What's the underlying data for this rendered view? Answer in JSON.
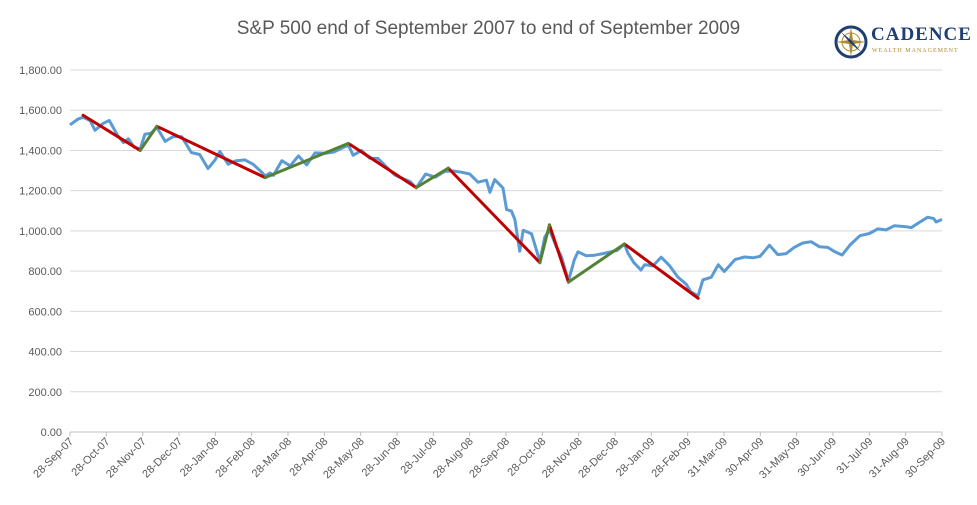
{
  "chart_data": {
    "type": "line",
    "title": "S&P 500 end of September 2007 to end of September 2009",
    "ylim": [
      0,
      1800
    ],
    "y_ticks": [
      "0.00",
      "200.00",
      "400.00",
      "600.00",
      "800.00",
      "1,000.00",
      "1,200.00",
      "1,400.00",
      "1,600.00",
      "1,800.00"
    ],
    "x_tick_labels": [
      "28-Sep-07",
      "28-Oct-07",
      "28-Nov-07",
      "28-Dec-07",
      "28-Jan-08",
      "28-Feb-08",
      "28-Mar-08",
      "28-Apr-08",
      "28-May-08",
      "28-Jun-08",
      "28-Jul-08",
      "28-Aug-08",
      "28-Sep-08",
      "28-Oct-08",
      "28-Nov-08",
      "28-Dec-08",
      "28-Jan-09",
      "28-Feb-09",
      "31-Mar-09",
      "30-Apr-09",
      "31-May-09",
      "30-Jun-09",
      "31-Jul-09",
      "31-Aug-09",
      "30-Sep-09"
    ],
    "grid": true,
    "series": [
      {
        "color": "#5b9bd5",
        "points": [
          [
            "2007-09-28",
            1527
          ],
          [
            "2007-10-05",
            1557
          ],
          [
            "2007-10-09",
            1565
          ],
          [
            "2007-10-15",
            1548
          ],
          [
            "2007-10-19",
            1500
          ],
          [
            "2007-10-26",
            1535
          ],
          [
            "2007-10-31",
            1549
          ],
          [
            "2007-11-07",
            1475
          ],
          [
            "2007-11-12",
            1439
          ],
          [
            "2007-11-16",
            1458
          ],
          [
            "2007-11-21",
            1416
          ],
          [
            "2007-11-26",
            1407
          ],
          [
            "2007-11-30",
            1481
          ],
          [
            "2007-12-05",
            1485
          ],
          [
            "2007-12-10",
            1515
          ],
          [
            "2007-12-17",
            1445
          ],
          [
            "2007-12-24",
            1470
          ],
          [
            "2007-12-31",
            1468
          ],
          [
            "2008-01-08",
            1390
          ],
          [
            "2008-01-15",
            1380
          ],
          [
            "2008-01-22",
            1310
          ],
          [
            "2008-01-28",
            1353
          ],
          [
            "2008-02-01",
            1395
          ],
          [
            "2008-02-08",
            1331
          ],
          [
            "2008-02-14",
            1348
          ],
          [
            "2008-02-22",
            1353
          ],
          [
            "2008-02-29",
            1331
          ],
          [
            "2008-03-07",
            1293
          ],
          [
            "2008-03-10",
            1273
          ],
          [
            "2008-03-14",
            1288
          ],
          [
            "2008-03-17",
            1276
          ],
          [
            "2008-03-24",
            1349
          ],
          [
            "2008-03-31",
            1323
          ],
          [
            "2008-04-07",
            1373
          ],
          [
            "2008-04-14",
            1328
          ],
          [
            "2008-04-21",
            1388
          ],
          [
            "2008-04-30",
            1386
          ],
          [
            "2008-05-07",
            1393
          ],
          [
            "2008-05-19",
            1427
          ],
          [
            "2008-05-23",
            1376
          ],
          [
            "2008-05-30",
            1400
          ],
          [
            "2008-06-06",
            1361
          ],
          [
            "2008-06-13",
            1360
          ],
          [
            "2008-06-20",
            1318
          ],
          [
            "2008-06-27",
            1278
          ],
          [
            "2008-07-03",
            1262
          ],
          [
            "2008-07-10",
            1245
          ],
          [
            "2008-07-15",
            1214
          ],
          [
            "2008-07-23",
            1283
          ],
          [
            "2008-07-31",
            1267
          ],
          [
            "2008-08-08",
            1296
          ],
          [
            "2008-08-15",
            1298
          ],
          [
            "2008-08-22",
            1292
          ],
          [
            "2008-08-29",
            1283
          ],
          [
            "2008-09-05",
            1242
          ],
          [
            "2008-09-12",
            1252
          ],
          [
            "2008-09-15",
            1192
          ],
          [
            "2008-09-19",
            1255
          ],
          [
            "2008-09-26",
            1213
          ],
          [
            "2008-09-29",
            1106
          ],
          [
            "2008-10-03",
            1099
          ],
          [
            "2008-10-06",
            1056
          ],
          [
            "2008-10-10",
            899
          ],
          [
            "2008-10-13",
            1003
          ],
          [
            "2008-10-20",
            985
          ],
          [
            "2008-10-27",
            848
          ],
          [
            "2008-10-31",
            968
          ],
          [
            "2008-11-04",
            1005
          ],
          [
            "2008-11-10",
            919
          ],
          [
            "2008-11-14",
            873
          ],
          [
            "2008-11-20",
            752
          ],
          [
            "2008-11-25",
            857
          ],
          [
            "2008-11-28",
            896
          ],
          [
            "2008-12-05",
            876
          ],
          [
            "2008-12-12",
            879
          ],
          [
            "2008-12-19",
            887
          ],
          [
            "2008-12-31",
            903
          ],
          [
            "2009-01-06",
            935
          ],
          [
            "2009-01-09",
            890
          ],
          [
            "2009-01-14",
            842
          ],
          [
            "2009-01-20",
            805
          ],
          [
            "2009-01-23",
            832
          ],
          [
            "2009-01-30",
            826
          ],
          [
            "2009-02-06",
            869
          ],
          [
            "2009-02-13",
            827
          ],
          [
            "2009-02-20",
            770
          ],
          [
            "2009-02-27",
            735
          ],
          [
            "2009-03-03",
            696
          ],
          [
            "2009-03-09",
            677
          ],
          [
            "2009-03-13",
            757
          ],
          [
            "2009-03-20",
            769
          ],
          [
            "2009-03-26",
            832
          ],
          [
            "2009-03-31",
            798
          ],
          [
            "2009-04-09",
            857
          ],
          [
            "2009-04-17",
            870
          ],
          [
            "2009-04-24",
            866
          ],
          [
            "2009-04-30",
            873
          ],
          [
            "2009-05-08",
            929
          ],
          [
            "2009-05-15",
            882
          ],
          [
            "2009-05-22",
            887
          ],
          [
            "2009-05-29",
            919
          ],
          [
            "2009-06-05",
            940
          ],
          [
            "2009-06-12",
            946
          ],
          [
            "2009-06-19",
            921
          ],
          [
            "2009-06-26",
            918
          ],
          [
            "2009-07-02",
            896
          ],
          [
            "2009-07-08",
            880
          ],
          [
            "2009-07-15",
            932
          ],
          [
            "2009-07-23",
            976
          ],
          [
            "2009-07-31",
            987
          ],
          [
            "2009-08-07",
            1010
          ],
          [
            "2009-08-14",
            1005
          ],
          [
            "2009-08-21",
            1026
          ],
          [
            "2009-08-31",
            1021
          ],
          [
            "2009-09-04",
            1016
          ],
          [
            "2009-09-11",
            1042
          ],
          [
            "2009-09-18",
            1068
          ],
          [
            "2009-09-23",
            1061
          ],
          [
            "2009-09-25",
            1044
          ],
          [
            "2009-09-30",
            1057
          ]
        ]
      },
      {
        "color": "#c00000",
        "segments": [
          [
            [
              "2007-10-09",
              1575
            ],
            [
              "2007-11-26",
              1400
            ]
          ],
          [
            [
              "2007-12-10",
              1520
            ],
            [
              "2008-03-10",
              1265
            ]
          ],
          [
            [
              "2008-05-19",
              1435
            ],
            [
              "2008-07-15",
              1215
            ]
          ],
          [
            [
              "2008-08-11",
              1312
            ],
            [
              "2008-10-27",
              842
            ]
          ],
          [
            [
              "2008-11-04",
              1030
            ],
            [
              "2008-11-20",
              745
            ]
          ],
          [
            [
              "2009-01-06",
              935
            ],
            [
              "2009-03-09",
              665
            ]
          ]
        ]
      },
      {
        "color": "#548235",
        "segments": [
          [
            [
              "2007-11-26",
              1400
            ],
            [
              "2007-12-10",
              1520
            ]
          ],
          [
            [
              "2008-03-10",
              1265
            ],
            [
              "2008-05-19",
              1435
            ]
          ],
          [
            [
              "2008-07-15",
              1215
            ],
            [
              "2008-08-11",
              1312
            ]
          ],
          [
            [
              "2008-10-27",
              842
            ],
            [
              "2008-11-04",
              1030
            ]
          ],
          [
            [
              "2008-11-20",
              745
            ],
            [
              "2009-01-06",
              935
            ]
          ]
        ]
      }
    ]
  },
  "logo": {
    "name": "CADENCE",
    "tagline": "WEALTH MANAGEMENT"
  },
  "colors": {
    "grid": "#d9d9d9",
    "axis": "#bfbfbf",
    "text": "#595959",
    "logo_navy": "#1f3f73",
    "logo_gold": "#b08a30"
  }
}
